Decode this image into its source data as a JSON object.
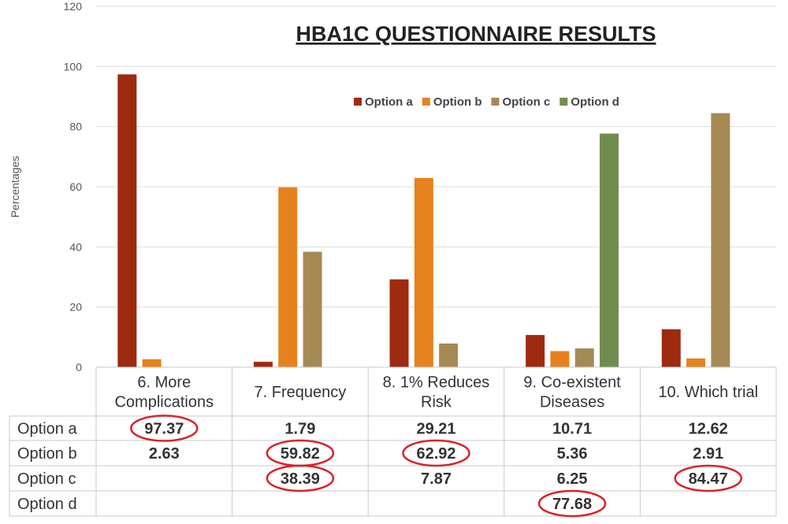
{
  "chart_data": {
    "type": "bar",
    "title": "HBA1C QUESTIONNAIRE RESULTS",
    "ylabel": "Percentages",
    "xlabel": "",
    "ylim": [
      0,
      120
    ],
    "yticks": [
      0,
      20,
      40,
      60,
      80,
      100,
      120
    ],
    "grid": true,
    "legend_placement": "top-right",
    "categories": [
      [
        "6. More",
        "Complications"
      ],
      [
        "7. Frequency"
      ],
      [
        "8. 1% Reduces",
        "Risk"
      ],
      [
        "9. Co-existent",
        "Diseases"
      ],
      [
        "10. Which trial"
      ]
    ],
    "series": [
      {
        "name": "Option a",
        "color": "#9e2a10",
        "values": [
          97.37,
          1.79,
          29.21,
          10.71,
          12.62
        ],
        "labels": [
          "97.37",
          "1.79",
          "29.21",
          "10.71",
          "12.62"
        ]
      },
      {
        "name": "Option b",
        "color": "#e6821e",
        "values": [
          2.63,
          59.82,
          62.92,
          5.36,
          2.91
        ],
        "labels": [
          "2.63",
          "59.82",
          "62.92",
          "5.36",
          "2.91"
        ]
      },
      {
        "name": "Option c",
        "color": "#a68a55",
        "values": [
          null,
          38.39,
          7.87,
          6.25,
          84.47
        ],
        "labels": [
          "",
          "38.39",
          "7.87",
          "6.25",
          "84.47"
        ]
      },
      {
        "name": "Option d",
        "color": "#6f8c4e",
        "values": [
          null,
          null,
          null,
          77.68,
          null
        ],
        "labels": [
          "",
          "",
          "",
          "77.68",
          ""
        ]
      }
    ],
    "highlighted_cells": [
      {
        "series": 0,
        "category": 0
      },
      {
        "series": 1,
        "category": 1
      },
      {
        "series": 1,
        "category": 2
      },
      {
        "series": 2,
        "category": 1
      },
      {
        "series": 2,
        "category": 4
      },
      {
        "series": 3,
        "category": 3
      }
    ],
    "highlight_color": "#d9232a"
  }
}
